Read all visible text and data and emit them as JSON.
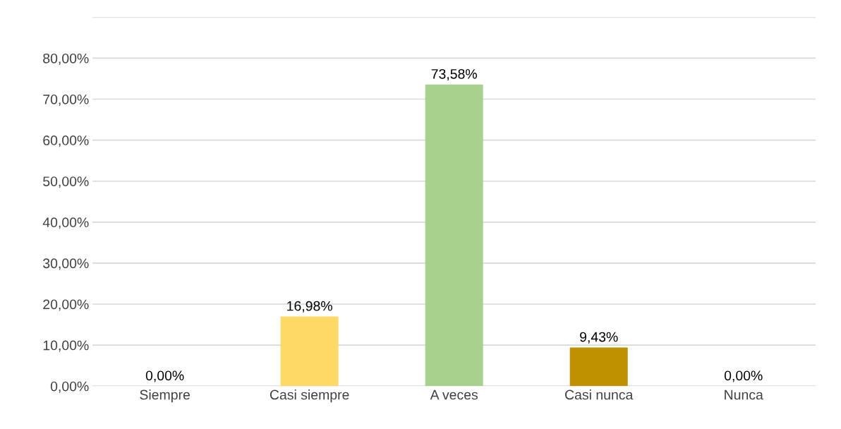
{
  "chart_data": {
    "type": "bar",
    "categories": [
      "Siempre",
      "Casi siempre",
      "A veces",
      "Casi nunca",
      "Nunca"
    ],
    "values": [
      0,
      16.98,
      73.58,
      9.43,
      0
    ],
    "value_labels": [
      "0,00%",
      "16,98%",
      "73,58%",
      "9,43%",
      "0,00%"
    ],
    "colors": [
      "#2f5597",
      "#ffd966",
      "#a9d18e",
      "#bf9000",
      "#70c497"
    ],
    "ylim": [
      0,
      90
    ],
    "yticks": [
      {
        "value": 0,
        "label": "0,00%"
      },
      {
        "value": 10,
        "label": "10,00%"
      },
      {
        "value": 20,
        "label": "20,00%"
      },
      {
        "value": 30,
        "label": "30,00%"
      },
      {
        "value": 40,
        "label": "40,00%"
      },
      {
        "value": 50,
        "label": "50,00%"
      },
      {
        "value": 60,
        "label": "60,00%"
      },
      {
        "value": 70,
        "label": "70,00%"
      },
      {
        "value": 80,
        "label": "80,00%"
      },
      {
        "value": 90,
        "label": null
      }
    ],
    "grid": "y"
  }
}
